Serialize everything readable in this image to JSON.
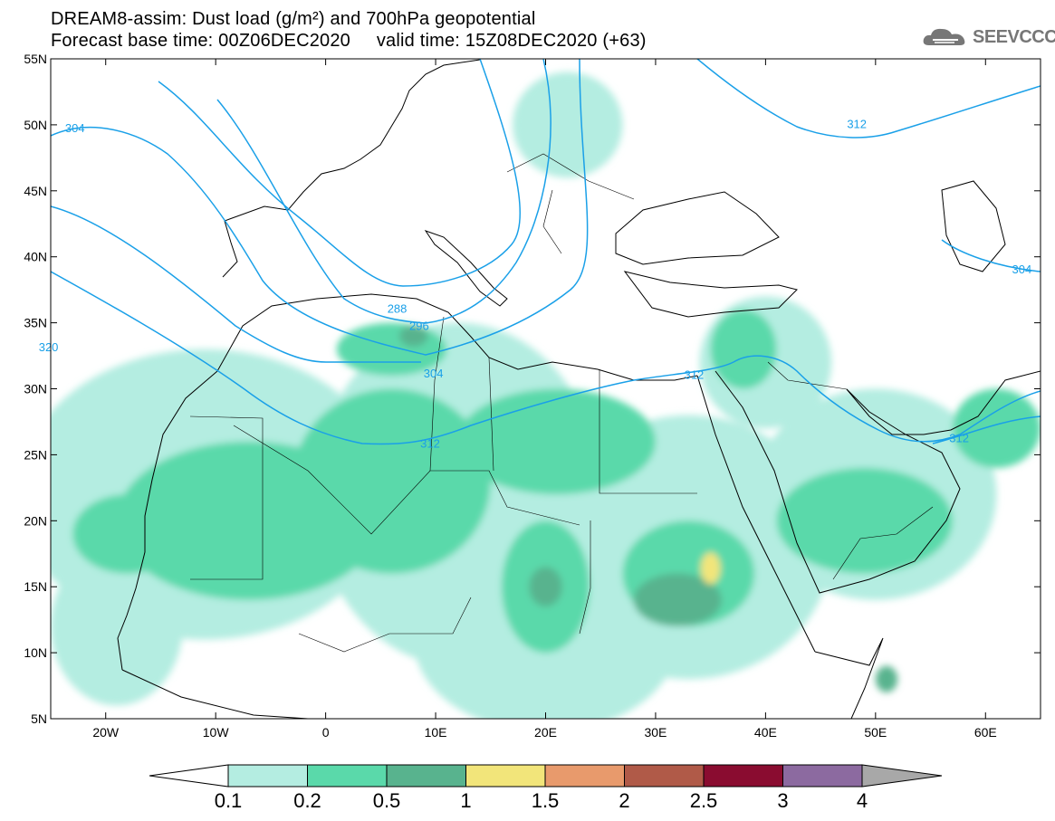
{
  "title": {
    "line1": "DREAM8-assim: Dust load (g/m²) and 700hPa geopotential",
    "line2_left": "Forecast base time: 00Z06DEC2020",
    "line2_right": "valid time: 15Z08DEC2020 (+63)"
  },
  "logo": {
    "text": "SEEVCCC",
    "icon": "cloud-icon"
  },
  "map": {
    "lon_range": [
      -25,
      65
    ],
    "lat_range": [
      5,
      55
    ],
    "lat_ticks": [
      {
        "value": 55,
        "label": "55N"
      },
      {
        "value": 50,
        "label": "50N"
      },
      {
        "value": 45,
        "label": "45N"
      },
      {
        "value": 40,
        "label": "40N"
      },
      {
        "value": 35,
        "label": "35N"
      },
      {
        "value": 30,
        "label": "30N"
      },
      {
        "value": 25,
        "label": "25N"
      },
      {
        "value": 20,
        "label": "20N"
      },
      {
        "value": 15,
        "label": "15N"
      },
      {
        "value": 10,
        "label": "10N"
      },
      {
        "value": 5,
        "label": "5N"
      }
    ],
    "lon_ticks": [
      {
        "value": -20,
        "label": "20W"
      },
      {
        "value": -10,
        "label": "10W"
      },
      {
        "value": 0,
        "label": "0"
      },
      {
        "value": 10,
        "label": "10E"
      },
      {
        "value": 20,
        "label": "20E"
      },
      {
        "value": 30,
        "label": "30E"
      },
      {
        "value": 40,
        "label": "40E"
      },
      {
        "value": 50,
        "label": "50E"
      },
      {
        "value": 60,
        "label": "60E"
      }
    ],
    "contour_color": "#1aa0e8",
    "contour_labels": [
      {
        "text": "304",
        "lon": -22.8,
        "lat": 49.8
      },
      {
        "text": "288",
        "lon": 6.5,
        "lat": 36.1
      },
      {
        "text": "296",
        "lon": 8.5,
        "lat": 34.8
      },
      {
        "text": "304",
        "lon": 9.8,
        "lat": 31.2
      },
      {
        "text": "312",
        "lon": 9.5,
        "lat": 25.9
      },
      {
        "text": "312",
        "lon": 33.5,
        "lat": 31.1
      },
      {
        "text": "312",
        "lon": 48.3,
        "lat": 50.1
      },
      {
        "text": "312",
        "lon": 57.6,
        "lat": 26.3
      },
      {
        "text": "304",
        "lon": 63.3,
        "lat": 39.1
      },
      {
        "text": "320",
        "lon": -25.2,
        "lat": 33.2
      }
    ],
    "dust_colors": {
      "c1": "#b4ede1",
      "c2": "#5ad9aa",
      "c3": "#58b38e",
      "c4": "#f2e57a"
    },
    "dust_regions": [
      {
        "level": "c1",
        "lon": -11,
        "lat": 22,
        "rx": 17,
        "ry": 11
      },
      {
        "level": "c1",
        "lon": 12,
        "lat": 22,
        "rx": 13,
        "ry": 13
      },
      {
        "level": "c1",
        "lon": 33,
        "lat": 18,
        "rx": 13,
        "ry": 10
      },
      {
        "level": "c1",
        "lon": 50,
        "lat": 22,
        "rx": 11,
        "ry": 8
      },
      {
        "level": "c1",
        "lon": 20,
        "lat": 11,
        "rx": 12,
        "ry": 7
      },
      {
        "level": "c1",
        "lon": -19,
        "lat": 12,
        "rx": 6,
        "ry": 6
      },
      {
        "level": "c1",
        "lon": 22,
        "lat": 50,
        "rx": 5,
        "ry": 4
      },
      {
        "level": "c1",
        "lon": 40,
        "lat": 32,
        "rx": 6,
        "ry": 5
      },
      {
        "level": "c2",
        "lon": -7,
        "lat": 20,
        "rx": 12,
        "ry": 6
      },
      {
        "level": "c2",
        "lon": 6,
        "lat": 23,
        "rx": 9,
        "ry": 7
      },
      {
        "level": "c2",
        "lon": 21,
        "lat": 26,
        "rx": 9,
        "ry": 4
      },
      {
        "level": "c2",
        "lon": 33,
        "lat": 16,
        "rx": 6,
        "ry": 4
      },
      {
        "level": "c2",
        "lon": 49,
        "lat": 20,
        "rx": 8,
        "ry": 4
      },
      {
        "level": "c2",
        "lon": 20,
        "lat": 15,
        "rx": 4,
        "ry": 5
      },
      {
        "level": "c2",
        "lon": -18,
        "lat": 19,
        "rx": 5,
        "ry": 3
      },
      {
        "level": "c2",
        "lon": 6,
        "lat": 33,
        "rx": 5,
        "ry": 2
      },
      {
        "level": "c2",
        "lon": 38,
        "lat": 33,
        "rx": 3,
        "ry": 3
      },
      {
        "level": "c2",
        "lon": 61,
        "lat": 27,
        "rx": 4,
        "ry": 3
      },
      {
        "level": "c3",
        "lon": 32,
        "lat": 14,
        "rx": 4,
        "ry": 2
      },
      {
        "level": "c3",
        "lon": 20,
        "lat": 15,
        "rx": 1.5,
        "ry": 1.5
      },
      {
        "level": "c3",
        "lon": 8,
        "lat": 34,
        "rx": 1.3,
        "ry": 0.8
      },
      {
        "level": "c3",
        "lon": 51,
        "lat": 8,
        "rx": 1,
        "ry": 1
      },
      {
        "level": "c4",
        "lon": 35,
        "lat": 16.4,
        "rx": 0.9,
        "ry": 1.2
      }
    ]
  },
  "colorbar": {
    "colors": [
      "#ffffff",
      "#b4ede1",
      "#5ad9aa",
      "#58b38e",
      "#f2e57a",
      "#e89a6c",
      "#b05a48",
      "#8a0c30",
      "#8c6aa0",
      "#a8a8a8"
    ],
    "labels": [
      "0.1",
      "0.2",
      "0.5",
      "1",
      "1.5",
      "2",
      "2.5",
      "3",
      "4"
    ]
  }
}
